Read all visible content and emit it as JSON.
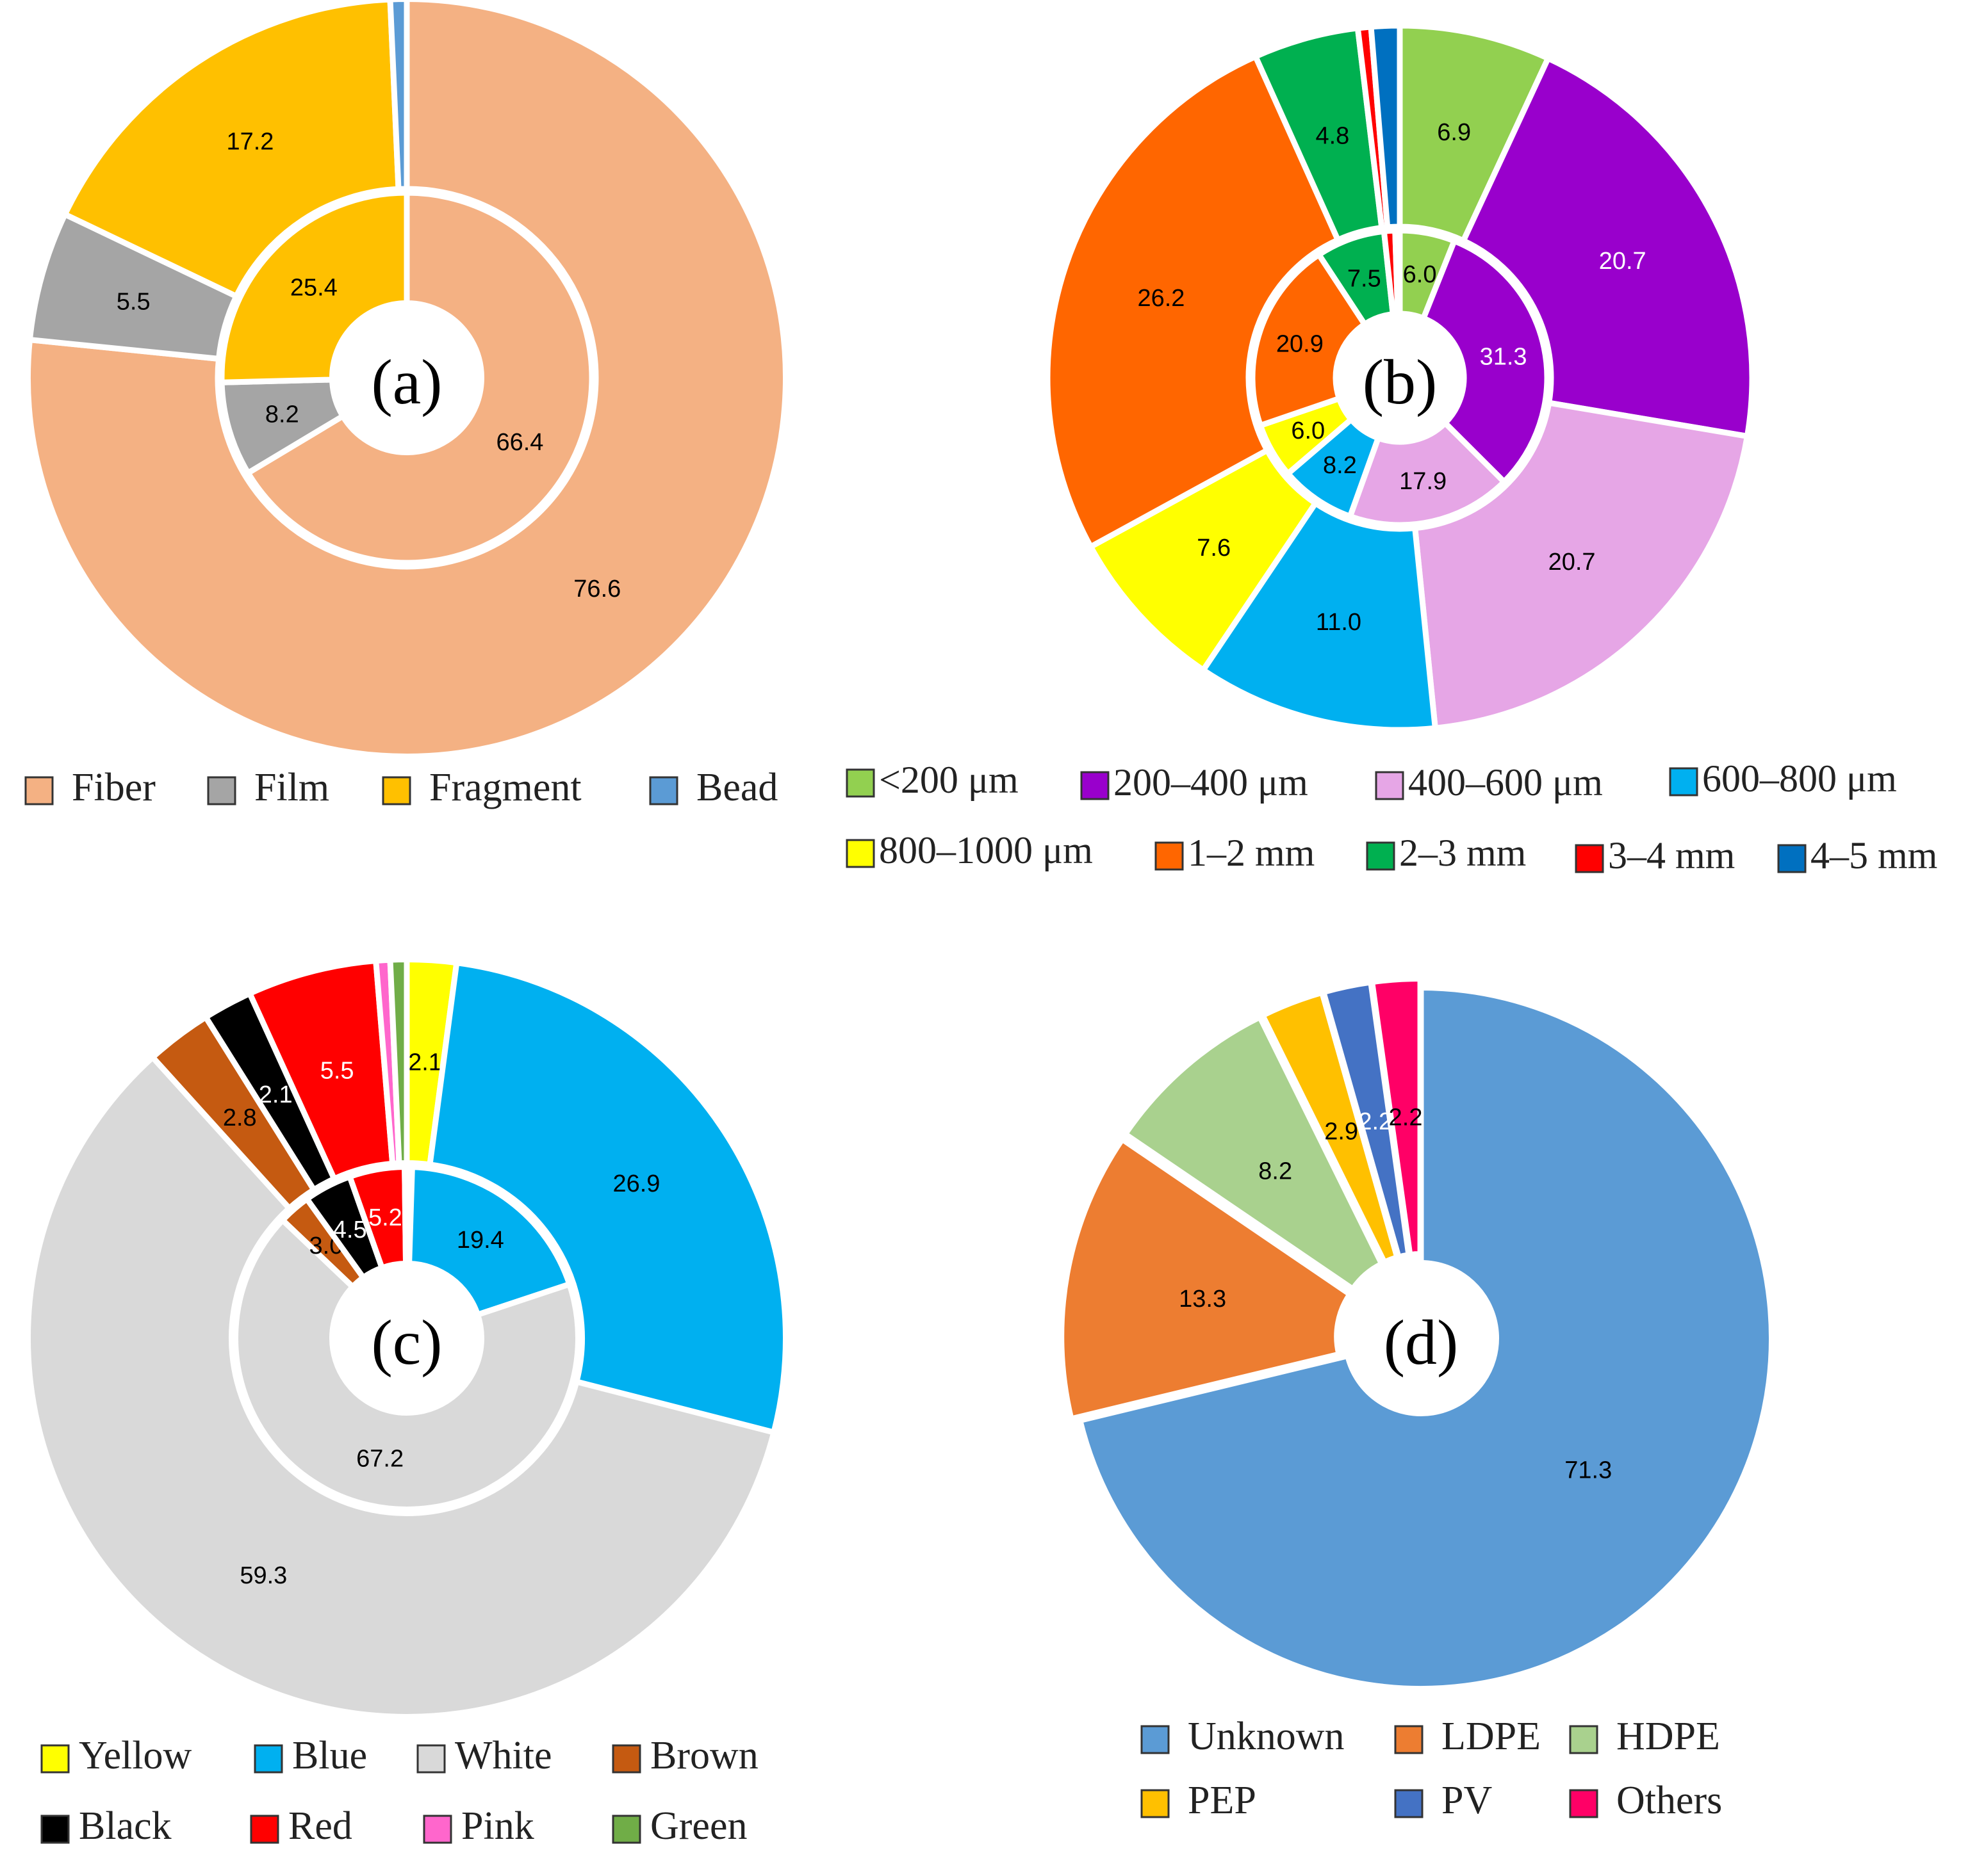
{
  "chart_data": [
    {
      "type": "donut",
      "panel": "(a)",
      "categories": [
        "Fiber",
        "Film",
        "Fragment",
        "Bead"
      ],
      "colors": [
        "#F4B183",
        "#A5A5A5",
        "#FFC000",
        "#5B9BD5"
      ],
      "label_colors": [
        "#000000",
        "#000000",
        "#000000",
        "#000000"
      ],
      "start_angle": 0,
      "rings": [
        {
          "ring": "outer",
          "values": [
            76.6,
            5.5,
            17.2,
            0.7
          ],
          "labels": [
            "76.6",
            "5.5",
            "17.2",
            ""
          ]
        },
        {
          "ring": "inner",
          "values": [
            66.4,
            8.2,
            25.4,
            0.0
          ],
          "labels": [
            "66.4",
            "8.2",
            "25.4",
            ""
          ]
        }
      ]
    },
    {
      "type": "donut",
      "panel": "(b)",
      "categories": [
        "<200 μm",
        "200–400 μm",
        "400–600 μm",
        "600–800 μm",
        "800–1000 μm",
        "1–2 mm",
        "2–3 mm",
        "3–4 mm",
        "4–5 mm"
      ],
      "colors": [
        "#92D050",
        "#9900CC",
        "#E6A6E6",
        "#00B0F0",
        "#FFFF00",
        "#FF6600",
        "#00B050",
        "#FF0000",
        "#0070C0"
      ],
      "label_colors": [
        "#000000",
        "#FFFFFF",
        "#000000",
        "#000000",
        "#000000",
        "#000000",
        "#000000",
        "#000000",
        "#000000"
      ],
      "start_angle": 0,
      "rings": [
        {
          "ring": "outer",
          "values": [
            6.9,
            20.7,
            20.7,
            11.0,
            7.6,
            26.2,
            4.8,
            0.6,
            1.3
          ],
          "labels": [
            "6.9",
            "20.7",
            "20.7",
            "11.0",
            "7.6",
            "26.2",
            "4.8",
            "",
            ""
          ]
        },
        {
          "ring": "inner",
          "values": [
            6.0,
            31.3,
            17.9,
            8.2,
            6.0,
            20.9,
            7.5,
            1.2,
            0.5
          ],
          "labels": [
            "6.0",
            "31.3",
            "17.9",
            "8.2",
            "6.0",
            "20.9",
            "7.5",
            "",
            ""
          ]
        }
      ]
    },
    {
      "type": "donut",
      "panel": "(c)",
      "categories": [
        "Yellow",
        "Blue",
        "White",
        "Brown",
        "Black",
        "Red",
        "Pink",
        "Green"
      ],
      "colors": [
        "#FFFF00",
        "#00B0F0",
        "#D9D9D9",
        "#C55A11",
        "#000000",
        "#FF0000",
        "#FF66CC",
        "#70AD47"
      ],
      "label_colors": [
        "#000000",
        "#000000",
        "#000000",
        "#000000",
        "#FFFFFF",
        "#FFFFFF",
        "#000000",
        "#000000"
      ],
      "start_angle": 0,
      "rings": [
        {
          "ring": "outer",
          "values": [
            2.1,
            26.9,
            59.3,
            2.8,
            2.1,
            5.5,
            0.6,
            0.7
          ],
          "labels": [
            "2.1",
            "26.9",
            "59.3",
            "2.8",
            "2.1",
            "5.5",
            "",
            ""
          ]
        },
        {
          "ring": "inner",
          "values": [
            0.5,
            19.4,
            67.2,
            3.0,
            4.5,
            5.2,
            0.1,
            0.1
          ],
          "labels": [
            "",
            "19.4",
            "67.2",
            "3.0",
            "4.5",
            "5.2",
            "",
            ""
          ]
        }
      ]
    },
    {
      "type": "donut",
      "panel": "(d)",
      "categories": [
        "Unknown",
        "LDPE",
        "HDPE",
        "PEP",
        "PV",
        "Others"
      ],
      "colors": [
        "#5B9BD5",
        "#ED7D31",
        "#A9D18E",
        "#FFC000",
        "#4472C4",
        "#FF0066"
      ],
      "label_colors": [
        "#000000",
        "#000000",
        "#000000",
        "#000000",
        "#FFFFFF",
        "#000000"
      ],
      "start_angle": 0,
      "rings": [
        {
          "ring": "single",
          "values": [
            71.3,
            13.3,
            8.2,
            2.9,
            2.2,
            2.2
          ],
          "labels": [
            "71.3",
            "13.3",
            "8.2",
            "2.9",
            "2.2",
            "2.2"
          ]
        }
      ]
    }
  ]
}
